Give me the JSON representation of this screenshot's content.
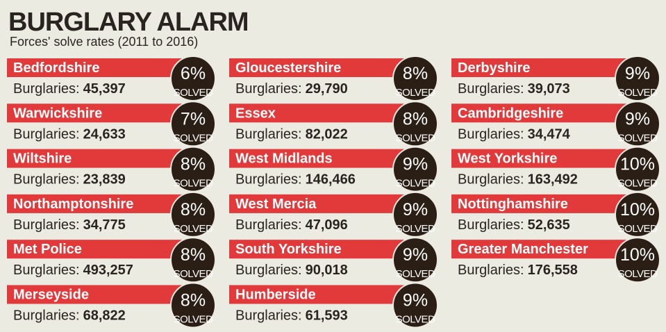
{
  "header": {
    "title": "BURGLARY ALARM",
    "subtitle": "Forces' solve rates (2011 to 2016)"
  },
  "count_label": "Burglaries:",
  "badge_label": "SOLVED",
  "columns": [
    [
      {
        "name": "Bedfordshire",
        "count": "45,397",
        "rate": "6%"
      },
      {
        "name": "Warwickshire",
        "count": "24,633",
        "rate": "7%"
      },
      {
        "name": "Wiltshire",
        "count": "23,839",
        "rate": "8%"
      },
      {
        "name": "Northamptonshire",
        "count": "34,775",
        "rate": "8%"
      },
      {
        "name": "Met Police",
        "count": "493,257",
        "rate": "8%"
      },
      {
        "name": "Merseyside",
        "count": "68,822",
        "rate": "8%"
      }
    ],
    [
      {
        "name": "Gloucestershire",
        "count": "29,790",
        "rate": "8%"
      },
      {
        "name": "Essex",
        "count": "82,022",
        "rate": "8%"
      },
      {
        "name": "West Midlands",
        "count": "146,466",
        "rate": "9%"
      },
      {
        "name": "West Mercia",
        "count": "47,096",
        "rate": "9%"
      },
      {
        "name": "South Yorkshire",
        "count": "90,018",
        "rate": "9%"
      },
      {
        "name": "Humberside",
        "count": "61,593",
        "rate": "9%"
      }
    ],
    [
      {
        "name": "Derbyshire",
        "count": "39,073",
        "rate": "9%"
      },
      {
        "name": "Cambridgeshire",
        "count": "34,474",
        "rate": "9%"
      },
      {
        "name": "West Yorkshire",
        "count": "163,492",
        "rate": "10%"
      },
      {
        "name": "Nottinghamshire",
        "count": "52,635",
        "rate": "10%"
      },
      {
        "name": "Greater Manchester",
        "count": "176,558",
        "rate": "10%"
      }
    ]
  ]
}
